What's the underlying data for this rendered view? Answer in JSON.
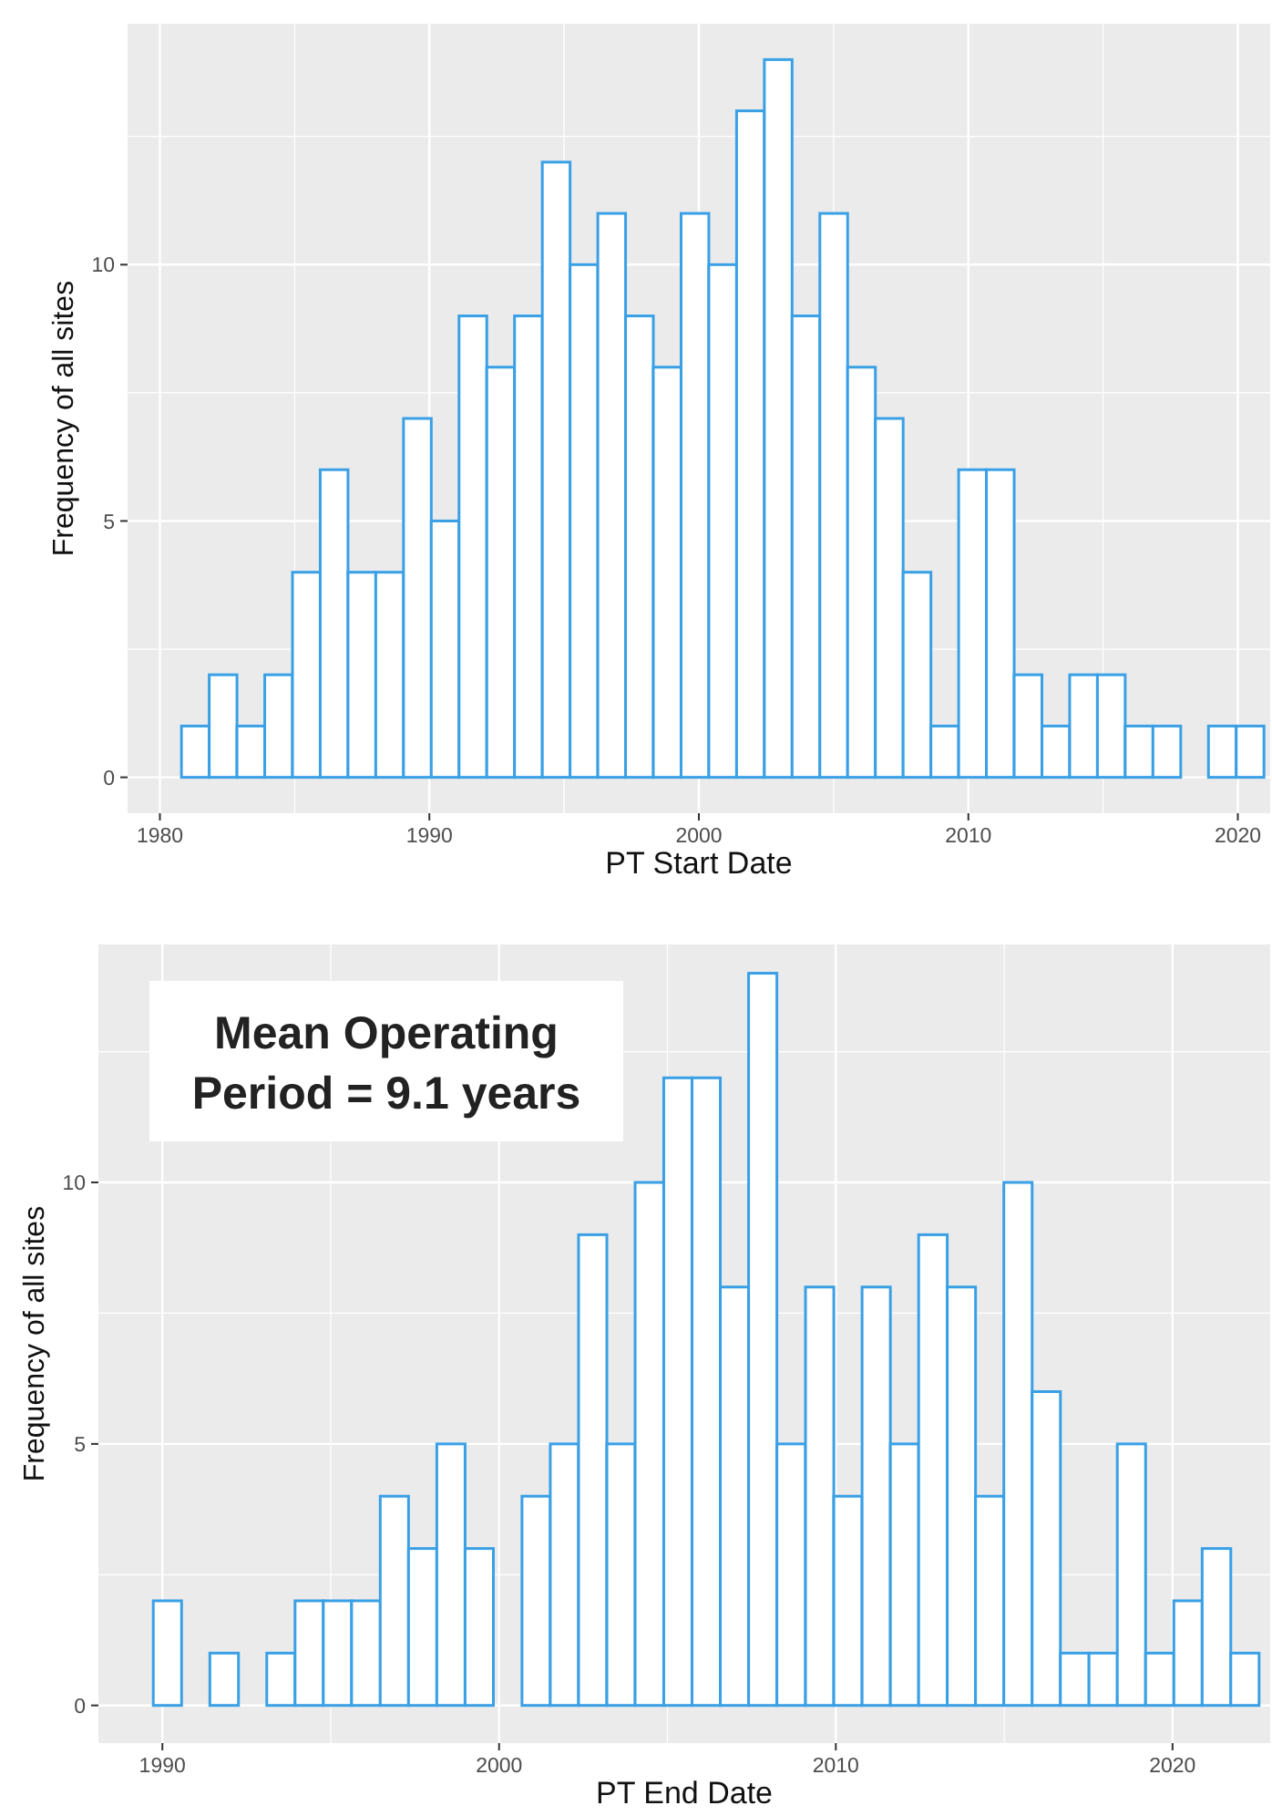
{
  "chart_data": [
    {
      "type": "histogram",
      "xlabel": "PT Start Date",
      "ylabel": "Frequency of all sites",
      "color": "#3aa0e6",
      "grid": true,
      "bins": [
        1980.8,
        1981.83,
        1982.86,
        1983.89,
        1984.92,
        1985.95,
        1986.98,
        1988.01,
        1989.04,
        1990.07,
        1991.1,
        1992.13,
        1993.16,
        1994.19,
        1995.22,
        1996.25,
        1997.28,
        1998.31,
        1999.34,
        2000.37,
        2001.4,
        2002.43,
        2003.46,
        2004.49,
        2005.52,
        2006.55,
        2007.58,
        2008.61,
        2009.64,
        2010.67,
        2011.7,
        2012.73,
        2013.76,
        2014.79,
        2015.82,
        2016.85,
        2017.88,
        2018.91,
        2019.94,
        2020.97
      ],
      "values": [
        1,
        2,
        1,
        2,
        4,
        6,
        4,
        4,
        7,
        5,
        9,
        8,
        9,
        12,
        10,
        11,
        9,
        8,
        11,
        10,
        13,
        14,
        9,
        11,
        8,
        7,
        4,
        1,
        6,
        6,
        2,
        1,
        2,
        2,
        1,
        1,
        0,
        1,
        1
      ],
      "xlim": [
        1978.8,
        2021.2
      ],
      "xticks": [
        1980,
        1990,
        2000,
        2010,
        2020
      ],
      "ylim": [
        -0.7,
        14.7
      ],
      "yticks": [
        0,
        5,
        10
      ]
    },
    {
      "type": "histogram",
      "xlabel": "PT End Date",
      "ylabel": "Frequency of all sites",
      "color": "#3aa0e6",
      "grid": true,
      "annotations": [
        "Mean Operating\nPeriod = 9.1 years"
      ],
      "bins": [
        1989.73,
        1990.57,
        1991.41,
        1992.26,
        1993.1,
        1993.94,
        1994.78,
        1995.62,
        1996.47,
        1997.31,
        1998.15,
        1998.99,
        1999.83,
        2000.68,
        2001.52,
        2002.36,
        2003.2,
        2004.04,
        2004.89,
        2005.73,
        2006.57,
        2007.41,
        2008.25,
        2009.1,
        2009.94,
        2010.78,
        2011.62,
        2012.46,
        2013.31,
        2014.15,
        2014.99,
        2015.83,
        2016.67,
        2017.52,
        2018.36,
        2019.2,
        2020.04,
        2020.88,
        2021.73,
        2022.57
      ],
      "values": [
        2,
        0,
        1,
        0,
        1,
        2,
        2,
        2,
        4,
        3,
        5,
        3,
        0,
        4,
        5,
        9,
        5,
        10,
        12,
        12,
        8,
        14,
        5,
        8,
        4,
        8,
        5,
        9,
        8,
        4,
        10,
        6,
        1,
        1,
        5,
        1,
        2,
        3,
        1
      ],
      "xlim": [
        1988.1,
        2022.9
      ],
      "xticks": [
        1990,
        2000,
        2010,
        2020
      ],
      "ylim": [
        -0.72,
        14.55
      ],
      "yticks": [
        0,
        5,
        10
      ]
    }
  ]
}
